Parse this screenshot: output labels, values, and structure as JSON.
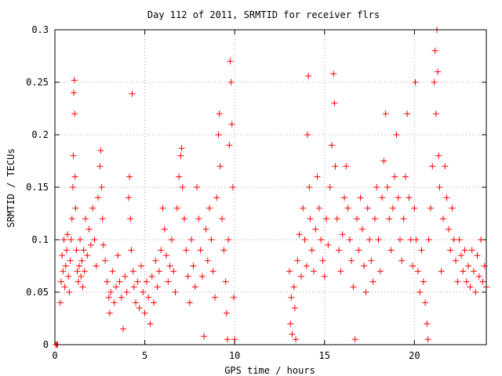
{
  "chart_data": {
    "type": "scatter",
    "title": "Day 112 of 2011, SRMTID for receiver flrs",
    "xlabel": "GPS time / hours",
    "ylabel": "SRMTID / TECUs",
    "xlim": [
      0,
      24
    ],
    "ylim": [
      0,
      0.3
    ],
    "x_ticks": [
      0,
      5,
      10,
      15,
      20
    ],
    "x_tick_labels": [
      "0",
      "5",
      "10",
      "15",
      "20"
    ],
    "y_ticks": [
      0,
      0.05,
      0.1,
      0.15,
      0.2,
      0.25,
      0.3
    ],
    "y_tick_labels": [
      "0",
      "0.05",
      "0.1",
      "0.15",
      "0.2",
      "0.25",
      "0.3"
    ],
    "grid": true,
    "marker": "plus",
    "color": "#ff0000",
    "series": [
      {
        "points": [
          [
            0.05,
            0.0
          ],
          [
            0.15,
            0.0
          ],
          [
            0.1,
            0.0
          ],
          [
            0.3,
            0.04
          ],
          [
            0.35,
            0.06
          ],
          [
            0.4,
            0.085
          ],
          [
            0.45,
            0.07
          ],
          [
            0.5,
            0.1
          ],
          [
            0.55,
            0.055
          ],
          [
            0.6,
            0.075
          ],
          [
            0.65,
            0.09
          ],
          [
            0.7,
            0.105
          ],
          [
            0.75,
            0.065
          ],
          [
            0.8,
            0.05
          ],
          [
            0.85,
            0.08
          ],
          [
            0.9,
            0.1
          ],
          [
            0.95,
            0.12
          ],
          [
            1.0,
            0.15
          ],
          [
            1.02,
            0.18
          ],
          [
            1.05,
            0.24
          ],
          [
            1.08,
            0.252
          ],
          [
            1.1,
            0.22
          ],
          [
            1.12,
            0.16
          ],
          [
            1.15,
            0.13
          ],
          [
            1.2,
            0.09
          ],
          [
            1.25,
            0.07
          ],
          [
            1.3,
            0.06
          ],
          [
            1.35,
            0.075
          ],
          [
            1.4,
            0.1
          ],
          [
            1.45,
            0.065
          ],
          [
            1.5,
            0.08
          ],
          [
            1.55,
            0.055
          ],
          [
            1.6,
            0.09
          ],
          [
            1.65,
            0.07
          ],
          [
            1.7,
            0.12
          ],
          [
            1.8,
            0.085
          ],
          [
            1.9,
            0.11
          ],
          [
            2.0,
            0.095
          ],
          [
            2.1,
            0.13
          ],
          [
            2.2,
            0.1
          ],
          [
            2.3,
            0.075
          ],
          [
            2.4,
            0.14
          ],
          [
            2.5,
            0.17
          ],
          [
            2.55,
            0.185
          ],
          [
            2.6,
            0.15
          ],
          [
            2.65,
            0.12
          ],
          [
            2.7,
            0.095
          ],
          [
            2.8,
            0.08
          ],
          [
            2.9,
            0.06
          ],
          [
            3.0,
            0.045
          ],
          [
            3.05,
            0.03
          ],
          [
            3.1,
            0.05
          ],
          [
            3.2,
            0.07
          ],
          [
            3.3,
            0.04
          ],
          [
            3.4,
            0.055
          ],
          [
            3.5,
            0.085
          ],
          [
            3.6,
            0.06
          ],
          [
            3.7,
            0.045
          ],
          [
            3.8,
            0.015
          ],
          [
            3.9,
            0.065
          ],
          [
            4.0,
            0.05
          ],
          [
            4.1,
            0.14
          ],
          [
            4.15,
            0.16
          ],
          [
            4.2,
            0.12
          ],
          [
            4.25,
            0.09
          ],
          [
            4.3,
            0.239
          ],
          [
            4.35,
            0.07
          ],
          [
            4.4,
            0.055
          ],
          [
            4.5,
            0.04
          ],
          [
            4.6,
            0.06
          ],
          [
            4.7,
            0.035
          ],
          [
            4.8,
            0.075
          ],
          [
            4.9,
            0.05
          ],
          [
            5.0,
            0.03
          ],
          [
            5.1,
            0.06
          ],
          [
            5.2,
            0.045
          ],
          [
            5.3,
            0.02
          ],
          [
            5.4,
            0.065
          ],
          [
            5.5,
            0.04
          ],
          [
            5.6,
            0.08
          ],
          [
            5.7,
            0.055
          ],
          [
            5.8,
            0.07
          ],
          [
            5.9,
            0.09
          ],
          [
            6.0,
            0.13
          ],
          [
            6.1,
            0.11
          ],
          [
            6.2,
            0.085
          ],
          [
            6.3,
            0.06
          ],
          [
            6.4,
            0.075
          ],
          [
            6.5,
            0.1
          ],
          [
            6.6,
            0.07
          ],
          [
            6.7,
            0.05
          ],
          [
            6.8,
            0.13
          ],
          [
            6.9,
            0.16
          ],
          [
            7.0,
            0.18
          ],
          [
            7.05,
            0.187
          ],
          [
            7.1,
            0.15
          ],
          [
            7.2,
            0.12
          ],
          [
            7.3,
            0.09
          ],
          [
            7.4,
            0.065
          ],
          [
            7.5,
            0.04
          ],
          [
            7.6,
            0.1
          ],
          [
            7.7,
            0.075
          ],
          [
            7.8,
            0.055
          ],
          [
            7.9,
            0.15
          ],
          [
            8.0,
            0.12
          ],
          [
            8.1,
            0.09
          ],
          [
            8.2,
            0.065
          ],
          [
            8.3,
            0.008
          ],
          [
            8.4,
            0.11
          ],
          [
            8.5,
            0.08
          ],
          [
            8.6,
            0.13
          ],
          [
            8.7,
            0.1
          ],
          [
            8.8,
            0.07
          ],
          [
            8.9,
            0.045
          ],
          [
            9.0,
            0.14
          ],
          [
            9.1,
            0.2
          ],
          [
            9.15,
            0.22
          ],
          [
            9.2,
            0.17
          ],
          [
            9.3,
            0.12
          ],
          [
            9.4,
            0.09
          ],
          [
            9.5,
            0.06
          ],
          [
            9.55,
            0.03
          ],
          [
            9.6,
            0.005
          ],
          [
            9.65,
            0.1
          ],
          [
            9.7,
            0.19
          ],
          [
            9.75,
            0.27
          ],
          [
            9.8,
            0.25
          ],
          [
            9.85,
            0.21
          ],
          [
            9.9,
            0.15
          ],
          [
            9.95,
            0.045
          ],
          [
            10.0,
            0.005
          ],
          [
            13.05,
            0.07
          ],
          [
            13.1,
            0.02
          ],
          [
            13.15,
            0.045
          ],
          [
            13.2,
            0.01
          ],
          [
            13.3,
            0.055
          ],
          [
            13.35,
            0.035
          ],
          [
            13.4,
            0.005
          ],
          [
            13.5,
            0.08
          ],
          [
            13.6,
            0.105
          ],
          [
            13.7,
            0.065
          ],
          [
            13.8,
            0.13
          ],
          [
            13.9,
            0.1
          ],
          [
            14.0,
            0.075
          ],
          [
            14.05,
            0.2
          ],
          [
            14.1,
            0.256
          ],
          [
            14.15,
            0.15
          ],
          [
            14.2,
            0.12
          ],
          [
            14.3,
            0.09
          ],
          [
            14.4,
            0.07
          ],
          [
            14.5,
            0.11
          ],
          [
            14.6,
            0.16
          ],
          [
            14.7,
            0.13
          ],
          [
            14.8,
            0.1
          ],
          [
            14.9,
            0.08
          ],
          [
            15.0,
            0.065
          ],
          [
            15.1,
            0.12
          ],
          [
            15.2,
            0.095
          ],
          [
            15.3,
            0.15
          ],
          [
            15.4,
            0.19
          ],
          [
            15.5,
            0.258
          ],
          [
            15.55,
            0.23
          ],
          [
            15.6,
            0.17
          ],
          [
            15.7,
            0.12
          ],
          [
            15.8,
            0.09
          ],
          [
            15.9,
            0.07
          ],
          [
            16.0,
            0.105
          ],
          [
            16.1,
            0.14
          ],
          [
            16.2,
            0.17
          ],
          [
            16.3,
            0.13
          ],
          [
            16.4,
            0.1
          ],
          [
            16.5,
            0.08
          ],
          [
            16.6,
            0.055
          ],
          [
            16.7,
            0.005
          ],
          [
            16.8,
            0.12
          ],
          [
            16.9,
            0.09
          ],
          [
            17.0,
            0.14
          ],
          [
            17.1,
            0.11
          ],
          [
            17.2,
            0.075
          ],
          [
            17.3,
            0.05
          ],
          [
            17.4,
            0.13
          ],
          [
            17.5,
            0.1
          ],
          [
            17.6,
            0.08
          ],
          [
            17.7,
            0.06
          ],
          [
            17.8,
            0.12
          ],
          [
            17.9,
            0.15
          ],
          [
            18.0,
            0.1
          ],
          [
            18.1,
            0.07
          ],
          [
            18.2,
            0.14
          ],
          [
            18.3,
            0.175
          ],
          [
            18.4,
            0.22
          ],
          [
            18.5,
            0.15
          ],
          [
            18.6,
            0.12
          ],
          [
            18.7,
            0.09
          ],
          [
            18.8,
            0.13
          ],
          [
            18.9,
            0.16
          ],
          [
            19.0,
            0.2
          ],
          [
            19.1,
            0.14
          ],
          [
            19.2,
            0.1
          ],
          [
            19.3,
            0.08
          ],
          [
            19.4,
            0.12
          ],
          [
            19.5,
            0.16
          ],
          [
            19.6,
            0.22
          ],
          [
            19.7,
            0.14
          ],
          [
            19.8,
            0.1
          ],
          [
            19.9,
            0.075
          ],
          [
            20.0,
            0.13
          ],
          [
            20.05,
            0.25
          ],
          [
            20.1,
            0.1
          ],
          [
            20.2,
            0.07
          ],
          [
            20.3,
            0.05
          ],
          [
            20.4,
            0.09
          ],
          [
            20.5,
            0.06
          ],
          [
            20.6,
            0.04
          ],
          [
            20.7,
            0.02
          ],
          [
            20.75,
            0.005
          ],
          [
            20.8,
            0.1
          ],
          [
            20.9,
            0.13
          ],
          [
            21.0,
            0.17
          ],
          [
            21.1,
            0.25
          ],
          [
            21.15,
            0.28
          ],
          [
            21.2,
            0.22
          ],
          [
            21.25,
            0.3
          ],
          [
            21.3,
            0.26
          ],
          [
            21.35,
            0.18
          ],
          [
            21.4,
            0.15
          ],
          [
            21.5,
            0.07
          ],
          [
            21.6,
            0.12
          ],
          [
            21.7,
            0.17
          ],
          [
            21.8,
            0.14
          ],
          [
            21.9,
            0.11
          ],
          [
            22.0,
            0.09
          ],
          [
            22.1,
            0.13
          ],
          [
            22.2,
            0.1
          ],
          [
            22.3,
            0.08
          ],
          [
            22.4,
            0.06
          ],
          [
            22.5,
            0.1
          ],
          [
            22.6,
            0.085
          ],
          [
            22.7,
            0.07
          ],
          [
            22.8,
            0.09
          ],
          [
            22.9,
            0.06
          ],
          [
            23.0,
            0.075
          ],
          [
            23.1,
            0.055
          ],
          [
            23.2,
            0.09
          ],
          [
            23.3,
            0.07
          ],
          [
            23.4,
            0.05
          ],
          [
            23.5,
            0.085
          ],
          [
            23.6,
            0.065
          ],
          [
            23.7,
            0.1
          ],
          [
            23.8,
            0.06
          ],
          [
            23.9,
            0.075
          ],
          [
            24.0,
            0.055
          ]
        ]
      }
    ]
  }
}
